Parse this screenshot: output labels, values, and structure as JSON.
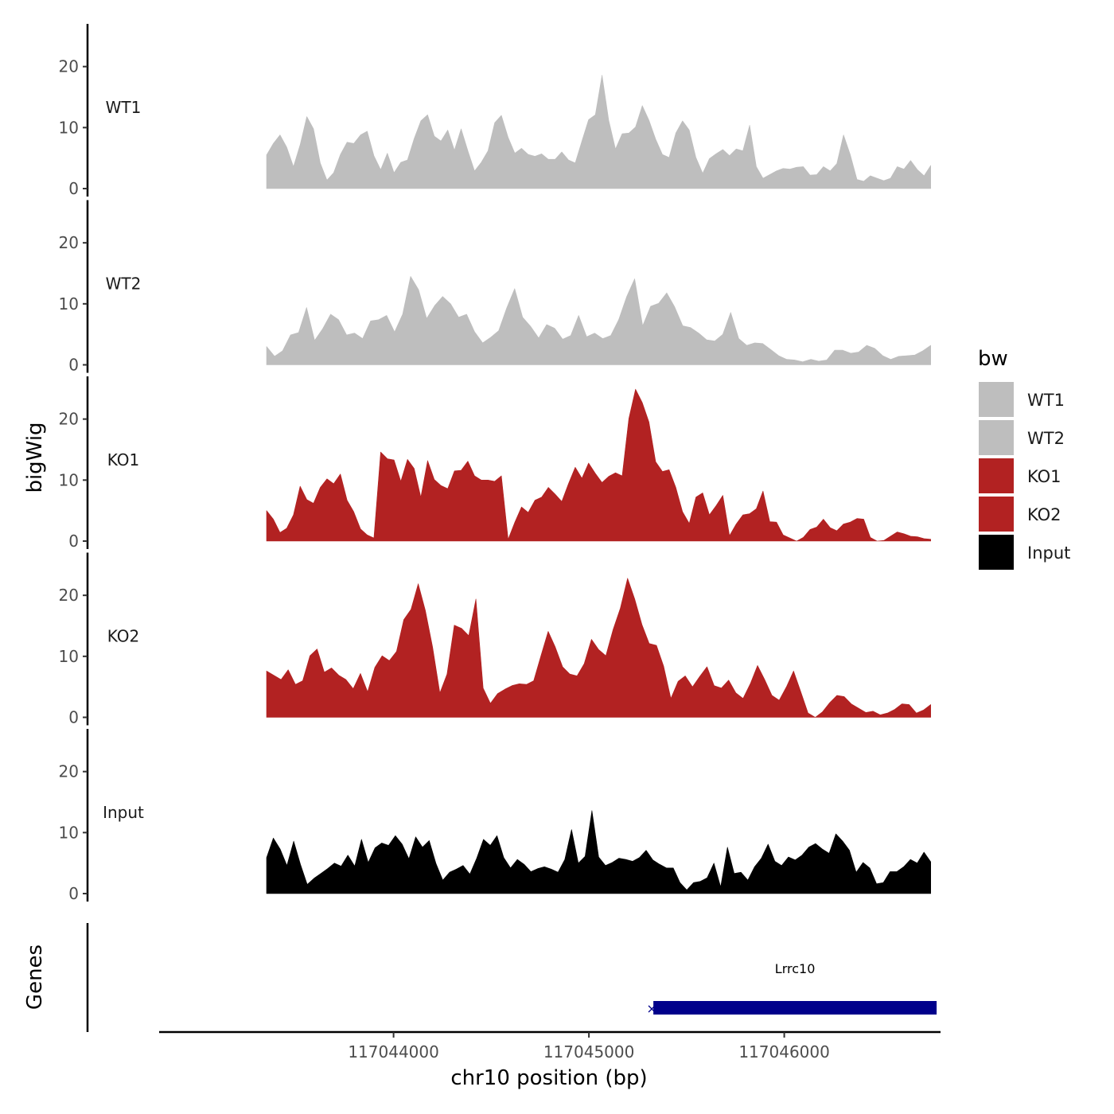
{
  "chart_data": {
    "type": "area",
    "ylabel": "bigWig",
    "genes_label": "Genes",
    "xlabel": "chr10 position (bp)",
    "xlim": [
      117042800,
      117046800
    ],
    "x_range_data": [
      117043350,
      117046750
    ],
    "ylim": [
      0,
      27
    ],
    "y_ticks": [
      0,
      10,
      20
    ],
    "y_tick_labels": [
      "0",
      "10",
      "20"
    ],
    "x_ticks": [
      117044000,
      117045000,
      117046000
    ],
    "x_tick_labels": [
      "117044000",
      "117045000",
      "117046000"
    ],
    "legend": {
      "title": "bw",
      "position": "right",
      "entries": [
        {
          "label": "WT1",
          "color": "#bebebe"
        },
        {
          "label": "WT2",
          "color": "#bebebe"
        },
        {
          "label": "KO1",
          "color": "#b22222"
        },
        {
          "label": "KO2",
          "color": "#b22222"
        },
        {
          "label": "Input",
          "color": "#000000"
        }
      ]
    },
    "series": [
      {
        "name": "WT1",
        "color": "#bebebe",
        "values": [
          5.5,
          7.4,
          8.8,
          6.8,
          3.6,
          7.2,
          11.8,
          9.8,
          4.2,
          1.4,
          2.6,
          5.6,
          7.6,
          7.4,
          8.8,
          9.4,
          5.4,
          3.1,
          5.8,
          2.6,
          4.3,
          4.7,
          8.2,
          11.1,
          12.1,
          8.6,
          7.8,
          9.6,
          6.3,
          9.8,
          6.2,
          2.9,
          4.3,
          6.2,
          10.8,
          12.0,
          8.4,
          5.8,
          6.6,
          5.6,
          5.3,
          5.7,
          4.8,
          4.8,
          6.0,
          4.7,
          4.2,
          7.8,
          11.3,
          12.1,
          18.6,
          11.2,
          6.5,
          9.0,
          9.1,
          10.1,
          13.6,
          11.2,
          8.1,
          5.6,
          5.1,
          9.1,
          11.1,
          9.6,
          5.1,
          2.5,
          4.9,
          5.7,
          6.4,
          5.4,
          6.5,
          6.2,
          10.4,
          3.6,
          1.7,
          2.3,
          2.9,
          3.3,
          3.2,
          3.5,
          3.6,
          2.2,
          2.3,
          3.6,
          2.9,
          4.1,
          8.8,
          5.6,
          1.5,
          1.2,
          2.1,
          1.7,
          1.3,
          1.7,
          3.6,
          3.2,
          4.6,
          3.1,
          2.1,
          3.8
        ]
      },
      {
        "name": "WT2",
        "color": "#bebebe",
        "values": [
          3.0,
          1.4,
          2.3,
          4.9,
          5.3,
          9.4,
          4.0,
          5.9,
          8.3,
          7.4,
          4.9,
          5.2,
          4.3,
          7.2,
          7.4,
          8.1,
          5.4,
          8.3,
          14.5,
          12.3,
          7.6,
          9.7,
          11.2,
          10.0,
          7.8,
          8.3,
          5.4,
          3.6,
          4.5,
          5.6,
          9.3,
          12.5,
          7.8,
          6.3,
          4.4,
          6.6,
          6.0,
          4.2,
          4.8,
          8.1,
          4.6,
          5.2,
          4.3,
          4.8,
          7.4,
          11.2,
          14.1,
          6.4,
          9.6,
          10.1,
          11.8,
          9.5,
          6.4,
          6.1,
          5.2,
          4.1,
          3.9,
          5.0,
          8.6,
          4.3,
          3.2,
          3.6,
          3.5,
          2.5,
          1.5,
          0.9,
          0.8,
          0.5,
          0.9,
          0.6,
          0.8,
          2.4,
          2.4,
          1.9,
          2.1,
          3.2,
          2.7,
          1.5,
          0.9,
          1.4,
          1.5,
          1.6,
          2.3,
          3.2
        ]
      },
      {
        "name": "KO1",
        "color": "#b22222",
        "values": [
          5.0,
          3.6,
          1.4,
          2.1,
          4.3,
          9.0,
          6.8,
          6.2,
          8.8,
          10.2,
          9.4,
          11.0,
          6.7,
          4.8,
          2.0,
          1.0,
          0.5,
          14.6,
          13.5,
          13.3,
          9.8,
          13.4,
          11.9,
          7.2,
          13.2,
          10.1,
          9.1,
          8.6,
          11.5,
          11.6,
          13.1,
          10.7,
          10.0,
          10.0,
          9.8,
          10.7,
          0.3,
          3.1,
          5.6,
          4.7,
          6.7,
          7.2,
          8.8,
          7.7,
          6.5,
          9.4,
          12.1,
          10.3,
          12.8,
          11.1,
          9.6,
          10.6,
          11.2,
          10.7,
          20.1,
          24.9,
          22.7,
          19.5,
          13.0,
          11.4,
          11.7,
          8.8,
          4.8,
          2.9,
          7.2,
          7.9,
          4.3,
          5.8,
          7.5,
          0.9,
          2.8,
          4.3,
          4.5,
          5.3,
          8.2,
          3.2,
          3.1,
          1.0,
          0.5,
          0.0,
          0.6,
          1.9,
          2.3,
          3.6,
          2.2,
          1.7,
          2.8,
          3.1,
          3.7,
          3.6,
          0.6,
          0.0,
          0.1,
          0.8,
          1.5,
          1.2,
          0.8,
          0.7,
          0.4,
          0.3
        ]
      },
      {
        "name": "KO2",
        "color": "#b22222",
        "values": [
          7.6,
          6.9,
          6.2,
          7.8,
          5.4,
          6.0,
          10.1,
          11.2,
          7.4,
          8.1,
          6.9,
          6.2,
          4.7,
          7.2,
          4.2,
          8.2,
          10.1,
          9.3,
          10.8,
          16.0,
          17.7,
          21.9,
          17.5,
          11.5,
          4.0,
          7.1,
          15.1,
          14.6,
          13.4,
          19.4,
          4.8,
          2.3,
          3.9,
          4.6,
          5.2,
          5.5,
          5.4,
          6.0,
          10.1,
          14.1,
          11.5,
          8.3,
          7.1,
          6.8,
          8.8,
          12.8,
          11.1,
          10.1,
          14.4,
          17.9,
          22.8,
          19.4,
          15.2,
          12.1,
          11.8,
          8.4,
          3.1,
          5.9,
          6.8,
          5.0,
          6.7,
          8.3,
          5.2,
          4.8,
          6.1,
          4.0,
          3.1,
          5.5,
          8.5,
          6.2,
          3.6,
          2.8,
          5.0,
          7.6,
          4.2,
          0.7,
          0.0,
          0.9,
          2.4,
          3.6,
          3.4,
          2.2,
          1.5,
          0.8,
          1.0,
          0.4,
          0.7,
          1.3,
          2.2,
          2.1,
          0.7,
          1.2,
          2.1
        ]
      },
      {
        "name": "Input",
        "color": "#000000",
        "values": [
          5.9,
          9.1,
          7.3,
          4.6,
          8.6,
          4.8,
          1.5,
          2.5,
          3.3,
          4.1,
          5.0,
          4.5,
          6.3,
          4.5,
          8.9,
          5.1,
          7.5,
          8.3,
          7.9,
          9.5,
          8.1,
          5.7,
          9.3,
          7.6,
          8.7,
          4.9,
          2.2,
          3.5,
          4.0,
          4.6,
          3.2,
          5.8,
          8.9,
          7.9,
          9.5,
          5.9,
          4.2,
          5.6,
          4.8,
          3.6,
          4.1,
          4.4,
          4.0,
          3.5,
          5.6,
          10.5,
          5.0,
          6.1,
          13.6,
          6.0,
          4.6,
          5.1,
          5.8,
          5.6,
          5.3,
          5.9,
          7.1,
          5.5,
          4.8,
          4.2,
          4.2,
          1.8,
          0.6,
          1.8,
          2.0,
          2.6,
          5.0,
          1.1,
          7.6,
          3.3,
          3.5,
          2.2,
          4.4,
          5.8,
          8.1,
          5.3,
          4.6,
          6.0,
          5.5,
          6.3,
          7.6,
          8.2,
          7.3,
          6.6,
          9.8,
          8.6,
          7.1,
          3.5,
          5.1,
          4.2,
          1.6,
          1.8,
          3.6,
          3.6,
          4.4,
          5.6,
          5.0,
          6.8,
          5.2
        ]
      }
    ],
    "genes": [
      {
        "name": "Lrrc10",
        "start": 117045330,
        "end": 117046780,
        "color": "#00008b"
      }
    ]
  }
}
